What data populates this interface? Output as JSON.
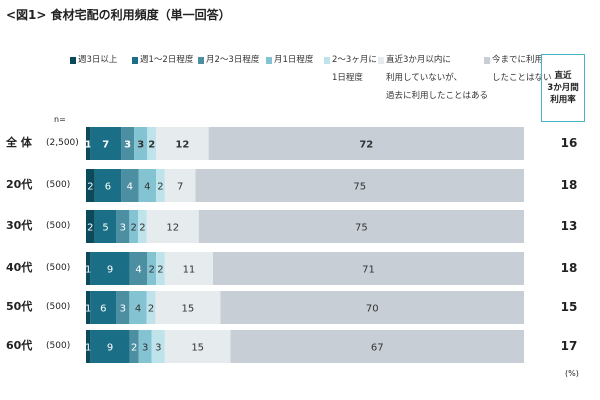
{
  "title": "<図1> 食材宅配の利用頻度（単一回答）",
  "n_label": "n=",
  "unit_label": "(%)",
  "rate_header": [
    "直近",
    "3か月間",
    "利用率"
  ],
  "legend": [
    {
      "lines": [
        "週3日以上"
      ],
      "color": "#0b4a5a"
    },
    {
      "lines": [
        "週1～2日程度"
      ],
      "color": "#1a6f86"
    },
    {
      "lines": [
        "月2～3日程度"
      ],
      "color": "#4d8fa2"
    },
    {
      "lines": [
        "月1日程度"
      ],
      "color": "#84c3d2"
    },
    {
      "lines": [
        "2～3ヶ月に",
        "1日程度"
      ],
      "color": "#bfe3ea"
    },
    {
      "lines": [
        "直近3か月以内に",
        "利用していないが、",
        "過去に利用したことはある"
      ],
      "color": "#e6ebee"
    },
    {
      "lines": [
        "今までに利用",
        "したことはない"
      ],
      "color": "#c7ced6"
    }
  ],
  "chart_data": {
    "type": "bar",
    "orientation": "horizontal",
    "stacked": true,
    "xlim": [
      0,
      100
    ],
    "categories": [
      "全 体",
      "20代",
      "30代",
      "40代",
      "50代",
      "60代"
    ],
    "n": [
      "(2,500)",
      "(500)",
      "(500)",
      "(500)",
      "(500)",
      "(500)"
    ],
    "series": [
      {
        "name": "週3日以上",
        "values": [
          1,
          2,
          2,
          1,
          1,
          1
        ]
      },
      {
        "name": "週1～2日程度",
        "values": [
          7,
          6,
          5,
          9,
          6,
          9
        ]
      },
      {
        "name": "月2～3日程度",
        "values": [
          3,
          4,
          3,
          4,
          3,
          2
        ]
      },
      {
        "name": "月1日程度",
        "values": [
          3,
          4,
          2,
          2,
          4,
          3
        ]
      },
      {
        "name": "2～3ヶ月に1日程度",
        "values": [
          2,
          2,
          2,
          2,
          2,
          3
        ]
      },
      {
        "name": "直近3か月以内に利用していないが、過去に利用したことはある",
        "values": [
          12,
          7,
          12,
          11,
          15,
          15
        ]
      },
      {
        "name": "今までに利用したことはない",
        "values": [
          72,
          75,
          75,
          71,
          70,
          67
        ]
      }
    ],
    "rate": [
      16,
      18,
      13,
      18,
      15,
      17
    ]
  }
}
